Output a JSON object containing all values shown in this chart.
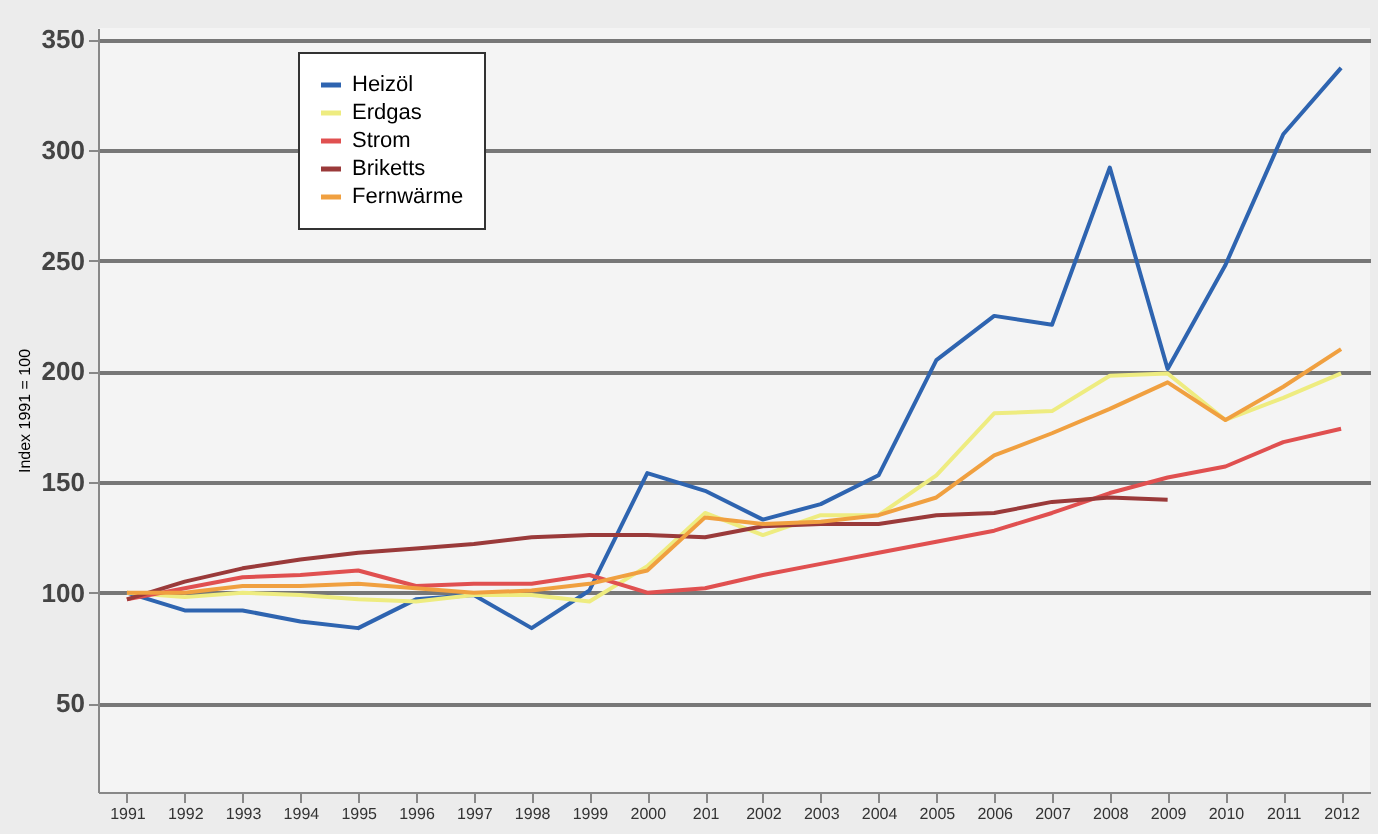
{
  "chart_data": {
    "type": "line",
    "ylabel": "Index 1991 = 100",
    "categories": [
      "1991",
      "1992",
      "1993",
      "1994",
      "1995",
      "1996",
      "1997",
      "1998",
      "1999",
      "2000",
      "201",
      "2002",
      "2003",
      "2004",
      "2005",
      "2006",
      "2007",
      "2008",
      "2009",
      "2010",
      "2011",
      "2012"
    ],
    "series": [
      {
        "name": "Heizöl",
        "color": "#2e64b0",
        "values": [
          100,
          92,
          92,
          87,
          84,
          97,
          99,
          84,
          101,
          154,
          146,
          133,
          140,
          153,
          205,
          225,
          221,
          292,
          201,
          248,
          307,
          337
        ]
      },
      {
        "name": "Erdgas",
        "color": "#eeec80",
        "values": [
          100,
          98,
          100,
          99,
          97,
          96,
          99,
          99,
          96,
          112,
          136,
          126,
          135,
          135,
          153,
          181,
          182,
          198,
          199,
          178,
          188,
          199
        ]
      },
      {
        "name": "Strom",
        "color": "#e05050",
        "values": [
          97,
          102,
          107,
          108,
          110,
          103,
          104,
          104,
          108,
          100,
          102,
          108,
          113,
          118,
          123,
          128,
          136,
          145,
          152,
          157,
          168,
          174
        ]
      },
      {
        "name": "Briketts",
        "color": "#9a3a3a",
        "values": [
          97,
          105,
          111,
          115,
          118,
          120,
          122,
          125,
          126,
          126,
          125,
          130,
          131,
          131,
          135,
          136,
          141,
          143,
          142,
          null,
          null,
          null
        ]
      },
      {
        "name": "Fernwärme",
        "color": "#f0a040",
        "values": [
          100,
          100,
          103,
          103,
          104,
          102,
          100,
          101,
          104,
          110,
          134,
          131,
          132,
          135,
          143,
          162,
          172,
          183,
          195,
          178,
          193,
          210
        ]
      }
    ],
    "ylim": [
      10,
      355
    ],
    "yticks": [
      50,
      100,
      150,
      200,
      250,
      300,
      350
    ],
    "grid": "y",
    "legend": "top left",
    "marker": "none",
    "line_style": "solid"
  }
}
